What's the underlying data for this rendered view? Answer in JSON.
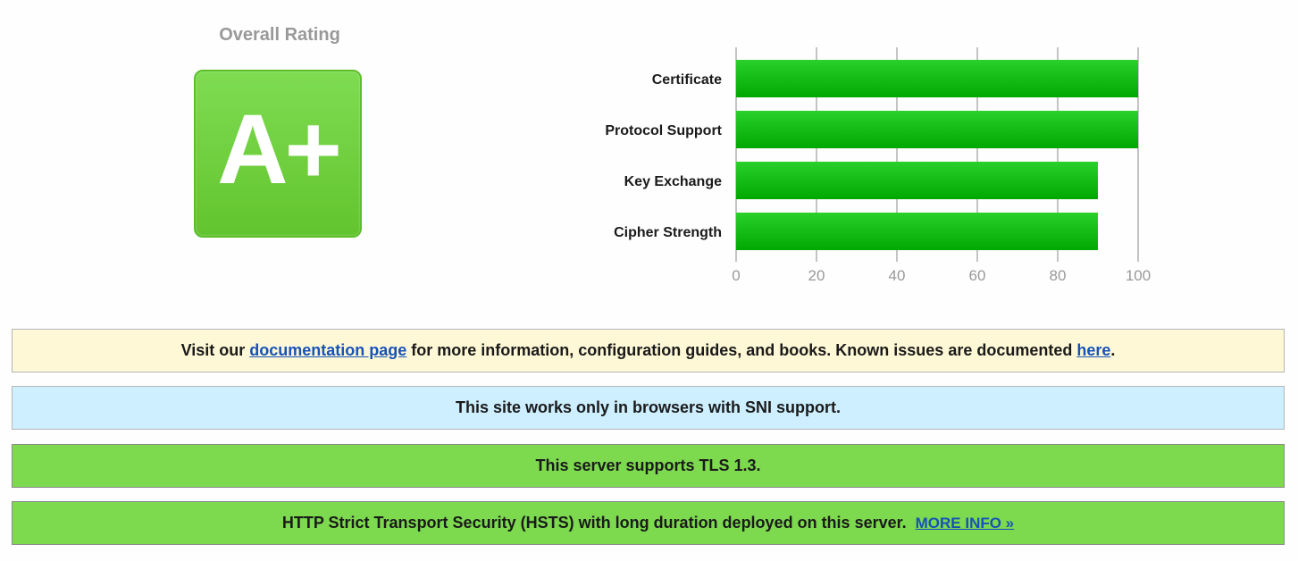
{
  "overall": {
    "title": "Overall Rating",
    "grade": "A+",
    "grade_color": "#6fd23e"
  },
  "chart_data": {
    "type": "bar",
    "orientation": "horizontal",
    "categories": [
      "Certificate",
      "Protocol Support",
      "Key Exchange",
      "Cipher Strength"
    ],
    "values": [
      100,
      100,
      90,
      90
    ],
    "xlim": [
      0,
      100
    ],
    "xticks": [
      0,
      20,
      40,
      60,
      80,
      100
    ],
    "grid": true,
    "bar_color": "#1dc21d"
  },
  "notices": {
    "documentation": {
      "prefix": "Visit our ",
      "doc_link": "documentation page",
      "middle": " for more information, configuration guides, and books. Known issues are documented ",
      "here_link": "here",
      "suffix": "."
    },
    "sni": "This site works only in browsers with SNI support.",
    "tls": "This server supports TLS 1.3.",
    "hsts": {
      "text": "HTTP Strict Transport Security (HSTS) with long duration deployed on this server.",
      "link": "MORE INFO »"
    }
  },
  "colors": {
    "yellow_notice": "#fef8d6",
    "blue_notice": "#cdefff",
    "green_notice": "#7dda4e",
    "link": "#1752b8"
  }
}
